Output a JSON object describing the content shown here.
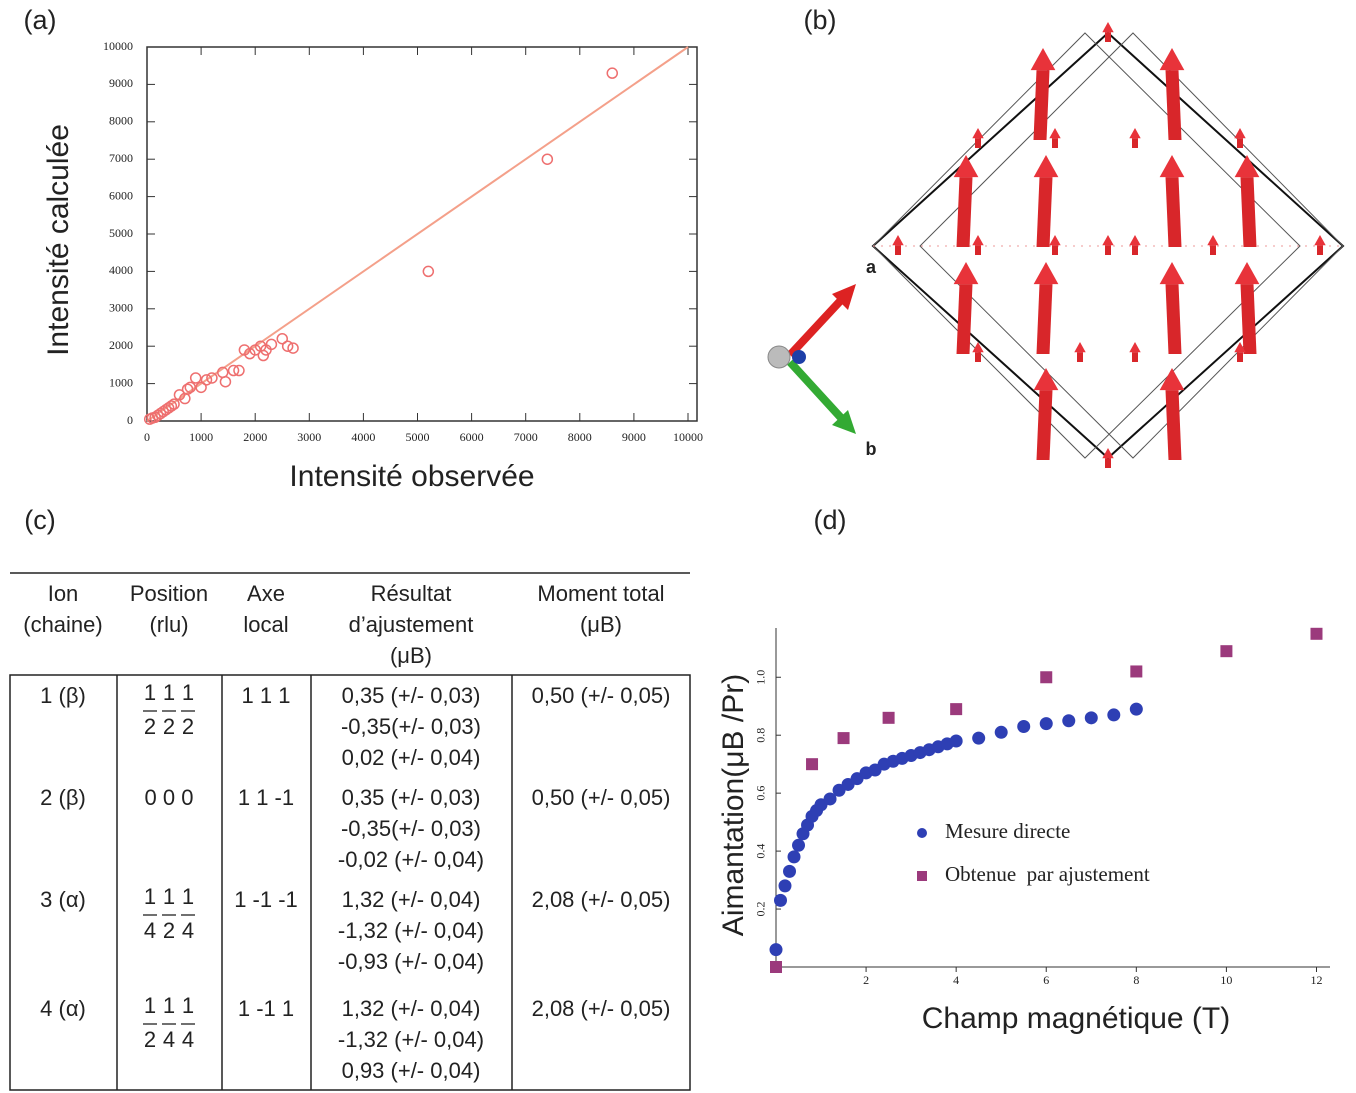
{
  "panel_labels": [
    "(a)",
    "(b)",
    "(c)",
    "(d)"
  ],
  "chart_data": [
    {
      "type": "scatter",
      "x_label": "Intensité observée",
      "y_label": "Intensité calculée",
      "xlim": [
        0,
        10000
      ],
      "ylim": [
        0,
        10000
      ],
      "xticks": [
        0,
        1000,
        2000,
        3000,
        4000,
        5000,
        6000,
        7000,
        8000,
        9000,
        10000
      ],
      "yticks": [
        0,
        1000,
        2000,
        3000,
        4000,
        5000,
        6000,
        7000,
        8000,
        9000,
        10000
      ],
      "series": [
        {
          "type": "line",
          "color": "#f4a08a",
          "x": [
            0,
            10000
          ],
          "values": [
            0,
            10000
          ]
        },
        {
          "marker": "open-circle",
          "color": "#ee6f6f",
          "x": [
            50,
            100,
            150,
            200,
            250,
            300,
            350,
            400,
            450,
            500,
            600,
            700,
            750,
            800,
            900,
            1000,
            1100,
            1200,
            1400,
            1450,
            1600,
            1700,
            1800,
            1900,
            2000,
            2100,
            2150,
            2200,
            2300,
            2500,
            2600,
            2700,
            5200,
            7400,
            8600
          ],
          "values": [
            50,
            80,
            100,
            150,
            200,
            250,
            300,
            350,
            400,
            450,
            700,
            600,
            850,
            900,
            1150,
            900,
            1100,
            1150,
            1300,
            1050,
            1350,
            1350,
            1900,
            1800,
            1900,
            2000,
            1750,
            1900,
            2050,
            2200,
            2000,
            1950,
            4000,
            7000,
            9300
          ]
        }
      ]
    },
    {
      "type": "scatter",
      "x_label": "Champ magnétique (T)",
      "y_label": "Aimantation(μB /Pr)",
      "xlim": [
        0,
        12.3
      ],
      "ylim": [
        0,
        1.17
      ],
      "xticks": [
        2,
        4,
        6,
        8,
        10,
        12
      ],
      "yticks": [
        0.2,
        0.4,
        0.6,
        0.8,
        {
          "value": 1,
          "label": "1.0"
        }
      ],
      "legend": "right",
      "series": [
        {
          "name": "Mesure directe",
          "marker": "circle",
          "color": "#2e3fb4",
          "x": [
            0,
            0.1,
            0.2,
            0.3,
            0.4,
            0.5,
            0.6,
            0.7,
            0.8,
            0.9,
            1.0,
            1.2,
            1.4,
            1.6,
            1.8,
            2.0,
            2.2,
            2.4,
            2.6,
            2.8,
            3.0,
            3.2,
            3.4,
            3.6,
            3.8,
            4.0,
            4.5,
            5.0,
            5.5,
            6.0,
            6.5,
            7.0,
            7.5,
            8.0
          ],
          "values": [
            0.06,
            0.23,
            0.28,
            0.33,
            0.38,
            0.42,
            0.46,
            0.49,
            0.52,
            0.54,
            0.56,
            0.58,
            0.61,
            0.63,
            0.65,
            0.67,
            0.68,
            0.7,
            0.71,
            0.72,
            0.73,
            0.74,
            0.75,
            0.76,
            0.77,
            0.78,
            0.79,
            0.81,
            0.83,
            0.84,
            0.85,
            0.86,
            0.87,
            0.89
          ]
        },
        {
          "name": "Obtenue  par ajustement",
          "marker": "square",
          "color": "#9b3a7c",
          "x": [
            0,
            0.8,
            1.5,
            2.5,
            4,
            6,
            8,
            10,
            12
          ],
          "values": [
            0,
            0.7,
            0.79,
            0.86,
            0.89,
            1.0,
            1.02,
            1.09,
            1.15
          ]
        }
      ]
    }
  ],
  "structure": {
    "axis_labels": [
      "a",
      "b"
    ]
  },
  "table": {
    "header": [
      [
        "Ion",
        "(chaine)"
      ],
      [
        "Position",
        "(rlu)"
      ],
      [
        "Axe",
        "local"
      ],
      [
        "Résultat",
        "d’ajustement",
        "(μB)"
      ],
      [
        "Moment total",
        "(μB)"
      ]
    ],
    "rows": [
      {
        "ion": "1 (β)",
        "position": {
          "num": [
            "1",
            "1",
            "1"
          ],
          "den": [
            "2",
            "2",
            "2"
          ]
        },
        "axis": "1 1 1",
        "fit": [
          "0,35 (+/- 0,03)",
          "-0,35(+/- 0,03)",
          "0,02 (+/- 0,04)"
        ],
        "moment": "0,50 (+/- 0,05)"
      },
      {
        "ion": "2 (β)",
        "position": "0 0 0",
        "axis": "1 1 -1",
        "fit": [
          "0,35 (+/- 0,03)",
          "-0,35(+/- 0,03)",
          "-0,02 (+/- 0,04)"
        ],
        "moment": "0,50 (+/- 0,05)"
      },
      {
        "ion": "3 (α)",
        "position": {
          "num": [
            "1",
            "1",
            "1"
          ],
          "den": [
            "4",
            "2",
            "4"
          ]
        },
        "axis": "1 -1 -1",
        "fit": [
          "1,32 (+/- 0,04)",
          "-1,32 (+/- 0,04)",
          "-0,93 (+/- 0,04)"
        ],
        "moment": "2,08 (+/- 0,05)"
      },
      {
        "ion": "4 (α)",
        "position": {
          "num": [
            "1",
            "1",
            "1"
          ],
          "den": [
            "2",
            "4",
            "4"
          ]
        },
        "axis": "1 -1 1",
        "fit": [
          "1,32 (+/- 0,04)",
          "-1,32 (+/- 0,04)",
          "0,93 (+/- 0,04)"
        ],
        "moment": "2,08 (+/- 0,05)"
      }
    ]
  }
}
